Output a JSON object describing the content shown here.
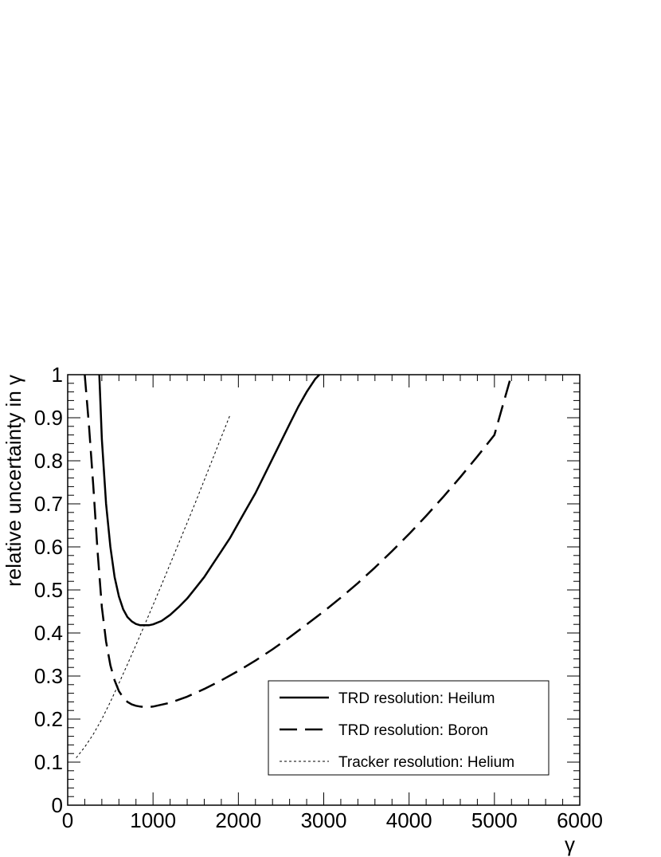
{
  "chart_data": {
    "type": "line",
    "title": "",
    "xlabel": "γ",
    "ylabel": "relative uncertainty in γ",
    "xlim": [
      0,
      6000
    ],
    "ylim": [
      0,
      1
    ],
    "grid": false,
    "legend_position": "bottom-right",
    "x_ticks": [
      "0",
      "1000",
      "2000",
      "3000",
      "4000",
      "5000",
      "6000"
    ],
    "y_ticks": [
      "0",
      "0.1",
      "0.2",
      "0.3",
      "0.4",
      "0.5",
      "0.6",
      "0.7",
      "0.8",
      "0.9",
      "1"
    ],
    "series": [
      {
        "name": "TRD resolution: Heilum",
        "style": "solid",
        "x": [
          370,
          400,
          450,
          500,
          550,
          600,
          650,
          700,
          750,
          800,
          850,
          900,
          950,
          1000,
          1100,
          1200,
          1300,
          1400,
          1500,
          1600,
          1700,
          1800,
          1900,
          2000,
          2100,
          2200,
          2300,
          2400,
          2500,
          2600,
          2700,
          2800,
          2900,
          2950
        ],
        "y": [
          1.0,
          0.85,
          0.7,
          0.6,
          0.53,
          0.485,
          0.455,
          0.437,
          0.427,
          0.421,
          0.418,
          0.418,
          0.418,
          0.42,
          0.428,
          0.442,
          0.46,
          0.48,
          0.505,
          0.53,
          0.56,
          0.59,
          0.62,
          0.655,
          0.69,
          0.725,
          0.765,
          0.805,
          0.845,
          0.885,
          0.925,
          0.96,
          0.99,
          1.0
        ]
      },
      {
        "name": "TRD resolution: Boron",
        "style": "dashed",
        "x": [
          200,
          250,
          300,
          350,
          400,
          450,
          500,
          550,
          600,
          650,
          700,
          750,
          800,
          850,
          900,
          950,
          1000,
          1200,
          1400,
          1600,
          1800,
          2000,
          2200,
          2400,
          2600,
          2800,
          3000,
          3200,
          3400,
          3600,
          3800,
          4000,
          4200,
          4400,
          4600,
          4800,
          5000,
          5200
        ],
        "y": [
          1.0,
          0.88,
          0.74,
          0.59,
          0.46,
          0.38,
          0.325,
          0.29,
          0.265,
          0.25,
          0.24,
          0.234,
          0.231,
          0.229,
          0.228,
          0.228,
          0.229,
          0.238,
          0.252,
          0.27,
          0.29,
          0.312,
          0.336,
          0.362,
          0.39,
          0.42,
          0.45,
          0.482,
          0.516,
          0.552,
          0.59,
          0.63,
          0.672,
          0.716,
          0.762,
          0.81,
          0.86,
          1.0
        ]
      },
      {
        "name": "Tracker resolution: Helium",
        "style": "dotted",
        "x": [
          100,
          200,
          300,
          400,
          500,
          600,
          700,
          800,
          900,
          1000,
          1100,
          1200,
          1300,
          1400,
          1500,
          1600,
          1700,
          1800,
          1900
        ],
        "y": [
          0.11,
          0.135,
          0.165,
          0.2,
          0.24,
          0.283,
          0.327,
          0.372,
          0.418,
          0.465,
          0.512,
          0.56,
          0.608,
          0.656,
          0.705,
          0.755,
          0.805,
          0.855,
          0.905
        ]
      }
    ]
  }
}
